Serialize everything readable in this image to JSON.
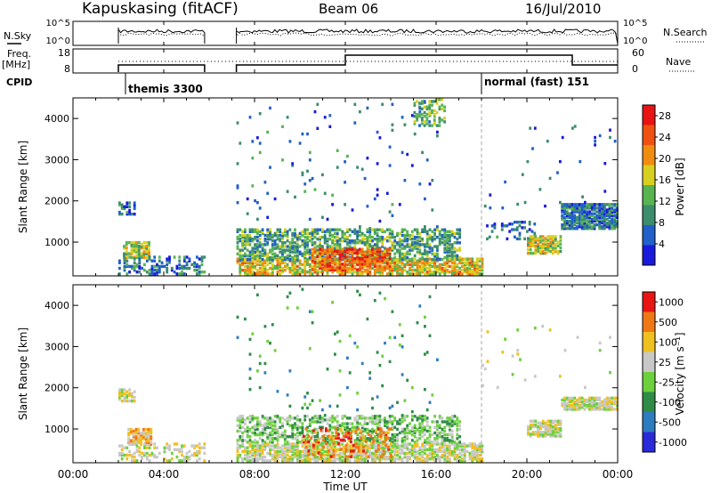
{
  "header": {
    "station": "Kapuskasing (fitACF)",
    "beam": "Beam 06",
    "date": "16/Jul/2010"
  },
  "top_panels": {
    "nsky_label": "N.Sky",
    "nsky_ticks": [
      "10^5",
      "10^0"
    ],
    "nsearch_label": "N.Search",
    "nsearch_ticks": [
      "10^5",
      "10^0"
    ],
    "freq_label_1": "Freq.",
    "freq_label_2": "[MHz]",
    "freq_ticks": [
      "18",
      "8"
    ],
    "nave_label": "Nave",
    "nave_ticks": [
      "60",
      "0"
    ],
    "cpid_label": "CPID",
    "cpid_modes": [
      {
        "label": "themis 3300",
        "start_hour": 2.0
      },
      {
        "label": "normal (fast) 151",
        "start_hour": 18.0
      }
    ]
  },
  "x_axis": {
    "label": "Time UT",
    "ticks": [
      "00:00",
      "04:00",
      "08:00",
      "12:00",
      "16:00",
      "20:00",
      "00:00"
    ],
    "range_hours": [
      0,
      24
    ]
  },
  "chart_data": [
    {
      "type": "heatmap",
      "name": "power",
      "ylabel": "Slant Range [km]",
      "yticks": [
        "1000",
        "2000",
        "3000",
        "4000"
      ],
      "ylim": [
        180,
        4500
      ],
      "colorbar_label": "Power [dB]",
      "colorbar_ticks": [
        "4",
        "8",
        "12",
        "16",
        "20",
        "24",
        "28"
      ],
      "colorbar_range": [
        0,
        30
      ],
      "colors": [
        "#1a1adc",
        "#2060c8",
        "#3c8c6e",
        "#58b450",
        "#d8d020",
        "#f08c10",
        "#f05010",
        "#e81414"
      ],
      "regions": [
        {
          "t": [
            2.0,
            2.7
          ],
          "r": [
            1650,
            1950
          ],
          "v": 5,
          "dens": 0.6
        },
        {
          "t": [
            2.2,
            3.4
          ],
          "r": [
            600,
            1000
          ],
          "v": 13,
          "dens": 0.75
        },
        {
          "t": [
            2.0,
            5.8
          ],
          "r": [
            200,
            650
          ],
          "v": 6,
          "dens": 0.4
        },
        {
          "t": [
            7.2,
            18.0
          ],
          "r": [
            200,
            600
          ],
          "v": 16,
          "dens": 0.7
        },
        {
          "t": [
            7.2,
            17.0
          ],
          "r": [
            550,
            1300
          ],
          "v": 9,
          "dens": 0.55
        },
        {
          "t": [
            10.5,
            14.0
          ],
          "r": [
            300,
            800
          ],
          "v": 22,
          "dens": 0.6
        },
        {
          "t": [
            7.2,
            16.0
          ],
          "r": [
            1300,
            4400
          ],
          "v": 5,
          "dens": 0.02
        },
        {
          "t": [
            15.0,
            16.4
          ],
          "r": [
            3800,
            4450
          ],
          "v": 11,
          "dens": 0.35
        },
        {
          "t": [
            18.2,
            20.3
          ],
          "r": [
            1050,
            1500
          ],
          "v": 4,
          "dens": 0.2
        },
        {
          "t": [
            20.0,
            21.5
          ],
          "r": [
            700,
            1150
          ],
          "v": 14,
          "dens": 0.7
        },
        {
          "t": [
            21.5,
            24.0
          ],
          "r": [
            1300,
            1900
          ],
          "v": 6,
          "dens": 0.8
        },
        {
          "t": [
            18.0,
            24.0
          ],
          "r": [
            1800,
            3800
          ],
          "v": 4,
          "dens": 0.015
        }
      ]
    },
    {
      "type": "heatmap",
      "name": "velocity",
      "ylabel": "Slant Range [km]",
      "yticks": [
        "1000",
        "2000",
        "3000",
        "4000"
      ],
      "ylim": [
        180,
        4500
      ],
      "colorbar_label": "Velocity [m s⁻¹]",
      "colorbar_ticks": [
        "1000",
        "500",
        "100",
        "25",
        "-25",
        "-100",
        "-500",
        "-1000"
      ],
      "colors": [
        "#2a2ad8",
        "#2e7cc0",
        "#2e8c46",
        "#6cd03c",
        "#c8c8c8",
        "#f0c020",
        "#f07814",
        "#e81414"
      ],
      "regions": [
        {
          "t": [
            2.0,
            2.7
          ],
          "r": [
            1650,
            1950
          ],
          "v": 4,
          "dens": 0.6
        },
        {
          "t": [
            2.4,
            3.4
          ],
          "r": [
            600,
            1000
          ],
          "v": 5,
          "dens": 0.8
        },
        {
          "t": [
            2.0,
            5.8
          ],
          "r": [
            200,
            650
          ],
          "v": 4,
          "dens": 0.35
        },
        {
          "t": [
            7.2,
            18.0
          ],
          "r": [
            200,
            650
          ],
          "v": 4,
          "dens": 0.7
        },
        {
          "t": [
            7.2,
            17.0
          ],
          "r": [
            650,
            1300
          ],
          "v": 3,
          "dens": 0.45
        },
        {
          "t": [
            10.0,
            14.0
          ],
          "r": [
            300,
            1000
          ],
          "v": 6,
          "dens": 0.25
        },
        {
          "t": [
            7.2,
            16.0
          ],
          "r": [
            1300,
            4400
          ],
          "v": 2,
          "dens": 0.02
        },
        {
          "t": [
            20.0,
            21.5
          ],
          "r": [
            800,
            1200
          ],
          "v": 4,
          "dens": 0.7
        },
        {
          "t": [
            21.5,
            24.0
          ],
          "r": [
            1450,
            1750
          ],
          "v": 4,
          "dens": 0.8
        },
        {
          "t": [
            18.0,
            24.0
          ],
          "r": [
            1800,
            3800
          ],
          "v": 4,
          "dens": 0.012
        }
      ]
    }
  ]
}
